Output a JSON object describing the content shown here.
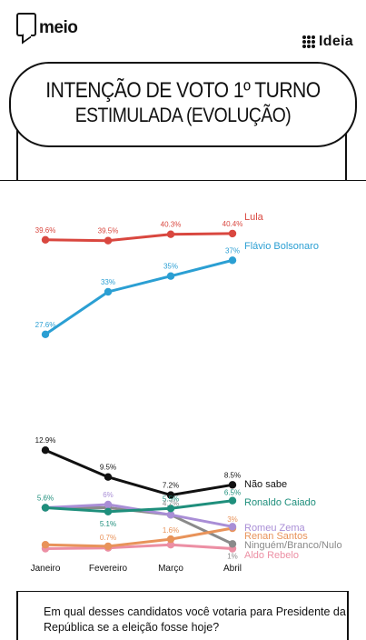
{
  "brand": {
    "left_logo": "meio",
    "right_logo": "Ideia"
  },
  "title": {
    "line1": "INTENÇÃO DE VOTO 1º TURNO",
    "line2": "ESTIMULADA (EVOLUÇÃO)"
  },
  "question": "Em qual desses candidatos você votaria para Presidente da República se a eleição fosse hoje?",
  "chart_data": {
    "type": "line",
    "categories": [
      "Janeiro",
      "Fevereiro",
      "Março",
      "Abril"
    ],
    "series": [
      {
        "name": "Lula",
        "color": "#d9473f",
        "values": [
          39.6,
          39.5,
          40.3,
          40.4
        ],
        "labels": [
          "39.6%",
          "39.5%",
          "40.3%",
          "40.4%"
        ]
      },
      {
        "name": "Flávio Bolsonaro",
        "color": "#2b9fd3",
        "values": [
          27.6,
          33,
          35,
          37
        ],
        "labels": [
          "27.6%",
          "33%",
          "35%",
          "37%"
        ]
      },
      {
        "name": "Não sabe",
        "color": "#111111",
        "values": [
          12.9,
          9.5,
          7.2,
          8.5
        ],
        "labels": [
          "12.9%",
          "9.5%",
          "7.2%",
          "8.5%"
        ]
      },
      {
        "name": "Ronaldo Caiado",
        "color": "#1f8f7c",
        "values": [
          5.6,
          5.1,
          5.5,
          6.5
        ],
        "labels": [
          "5.6%",
          "5.1%",
          "5.5%",
          "6.5%"
        ]
      },
      {
        "name": "Romeu Zema",
        "color": "#a98ed6",
        "values": [
          5.6,
          6,
          4.7,
          3.2
        ],
        "labels": [
          "",
          "6%",
          "",
          ""
        ]
      },
      {
        "name": "Renan Santos",
        "color": "#e8935a",
        "values": [
          0.9,
          0.7,
          1.6,
          3.0
        ],
        "labels": [
          "",
          "0.7%",
          "1.6%",
          "3%"
        ]
      },
      {
        "name": "Ninguém/Branco/Nulo",
        "color": "#8a8a8a",
        "values": [
          5.6,
          5.6,
          4.7,
          1.0
        ],
        "labels": [
          "",
          "",
          "4.7%",
          "1%"
        ]
      },
      {
        "name": "Aldo Rebelo",
        "color": "#ec8fa4",
        "values": [
          0.4,
          0.5,
          0.9,
          0.4
        ],
        "labels": [
          "",
          "",
          "",
          ""
        ]
      }
    ],
    "ylim": [
      0,
      42
    ],
    "grid": false,
    "legend": "right-end labels"
  }
}
